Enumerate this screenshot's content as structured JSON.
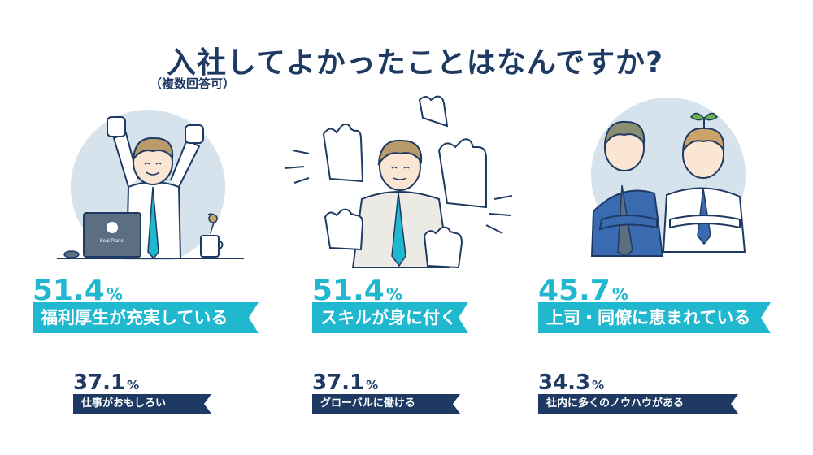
{
  "title": "入社してよかったことはなんですか?",
  "note": "（複数回答可）",
  "illustrations": {
    "left": "office-worker-celebrating-illustration",
    "center": "praised-man-with-clapping-hands-illustration",
    "right": "two-coworkers-arms-crossed-illustration"
  },
  "laptop_logo": "Seal Planet",
  "primary": [
    {
      "value": "51.4",
      "unit": "%",
      "label": "福利厚生が充実している"
    },
    {
      "value": "51.4",
      "unit": "%",
      "label": "スキルが身に付く"
    },
    {
      "value": "45.7",
      "unit": "%",
      "label": "上司・同僚に恵まれている"
    }
  ],
  "secondary": [
    {
      "value": "37.1",
      "unit": "%",
      "label": "仕事がおもしろい"
    },
    {
      "value": "37.1",
      "unit": "%",
      "label": "グローバルに働ける"
    },
    {
      "value": "34.3",
      "unit": "%",
      "label": "社内に多くのノウハウがある"
    }
  ],
  "colors": {
    "accent": "#1fb8cf",
    "navy": "#1e3a63",
    "circle": "#d7e3ec"
  }
}
